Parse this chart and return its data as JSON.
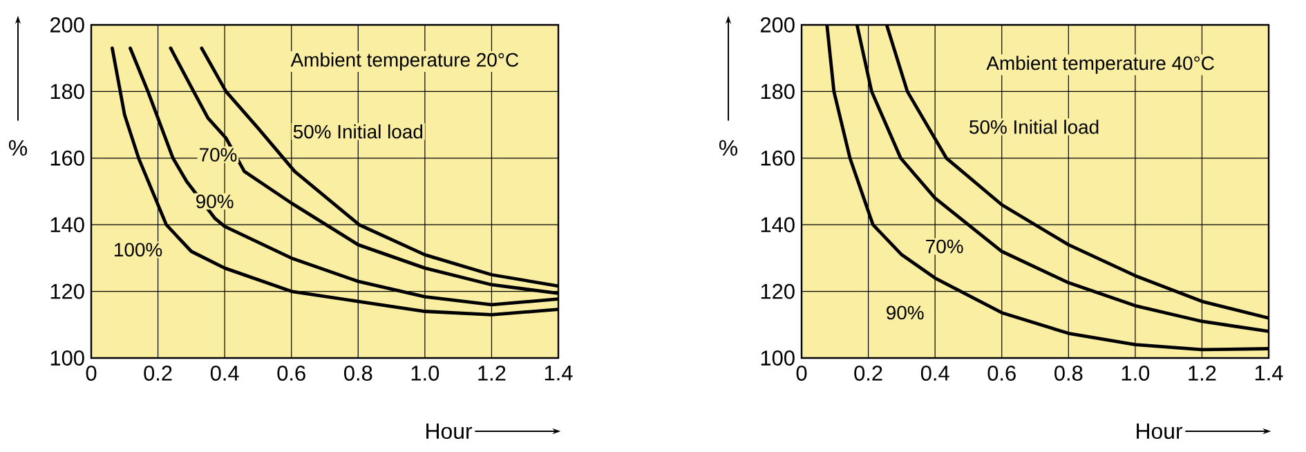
{
  "chart_data": [
    {
      "type": "line",
      "xlabel": "Hour",
      "ylabel": "%",
      "xlim": [
        0,
        1.4
      ],
      "ylim": [
        100,
        200
      ],
      "xticks": [
        0,
        0.2,
        0.4,
        0.6,
        0.8,
        {
          "value": 1.0,
          "label": "1.0"
        },
        1.2,
        1.4
      ],
      "yticks": [
        100,
        120,
        140,
        160,
        180,
        200
      ],
      "grid": true,
      "marker": "none",
      "line_style": "solid",
      "annotations": [
        "Ambient temperature 20°C",
        "50% Initial load",
        "70%",
        "90%",
        "100%"
      ],
      "series": [
        {
          "color": "#000000",
          "x": [
            0.063,
            0.1,
            0.142,
            0.225,
            0.3,
            0.4,
            0.6,
            0.8,
            1.0,
            1.2,
            1.4
          ],
          "values": [
            193,
            173,
            160,
            140,
            132,
            127,
            120,
            117,
            114,
            113,
            114.6
          ]
        },
        {
          "color": "#000000",
          "x": [
            0.117,
            0.17,
            0.245,
            0.286,
            0.37,
            0.4,
            0.6,
            0.8,
            1.0,
            1.2,
            1.4
          ],
          "values": [
            193,
            180,
            160,
            153,
            142,
            139.5,
            130,
            123,
            118.4,
            116,
            117.7
          ]
        },
        {
          "color": "#000000",
          "x": [
            0.238,
            0.307,
            0.35,
            0.404,
            0.459,
            0.6,
            0.8,
            1.0,
            1.2,
            1.4
          ],
          "values": [
            193,
            180,
            172,
            166,
            156,
            146.5,
            134,
            127,
            122,
            119.4
          ]
        },
        {
          "color": "#000000",
          "x": [
            0.331,
            0.404,
            0.5,
            0.61,
            0.803,
            1.0,
            1.2,
            1.4
          ],
          "values": [
            193,
            180,
            169,
            156,
            140,
            131,
            125,
            121.6
          ]
        }
      ]
    },
    {
      "type": "line",
      "xlabel": "Hour",
      "ylabel": "%",
      "xlim": [
        0,
        1.4
      ],
      "ylim": [
        100,
        200
      ],
      "xticks": [
        0,
        0.2,
        0.4,
        0.6,
        0.8,
        {
          "value": 1.0,
          "label": "1.0"
        },
        1.2,
        1.4
      ],
      "yticks": [
        100,
        120,
        140,
        160,
        180,
        200
      ],
      "grid": true,
      "marker": "none",
      "line_style": "solid",
      "annotations": [
        "Ambient temperature 40°C",
        "50% Initial load",
        "70%",
        "90%"
      ],
      "series": [
        {
          "color": "#000000",
          "x": [
            0.076,
            0.097,
            0.145,
            0.214,
            0.3,
            0.4,
            0.6,
            0.8,
            1.0,
            1.2,
            1.4
          ],
          "values": [
            200,
            180,
            160,
            140,
            131,
            124,
            113.6,
            107.4,
            104,
            102.5,
            102.8
          ]
        },
        {
          "color": "#000000",
          "x": [
            0.166,
            0.21,
            0.297,
            0.4,
            0.6,
            0.8,
            1.0,
            1.2,
            1.4
          ],
          "values": [
            200,
            180,
            160,
            148,
            132,
            122.6,
            115.7,
            111,
            108
          ]
        },
        {
          "color": "#000000",
          "x": [
            0.255,
            0.317,
            0.434,
            0.6,
            0.8,
            1.0,
            1.2,
            1.4
          ],
          "values": [
            200,
            180,
            160,
            146,
            134,
            124.7,
            117,
            112
          ]
        }
      ]
    }
  ]
}
